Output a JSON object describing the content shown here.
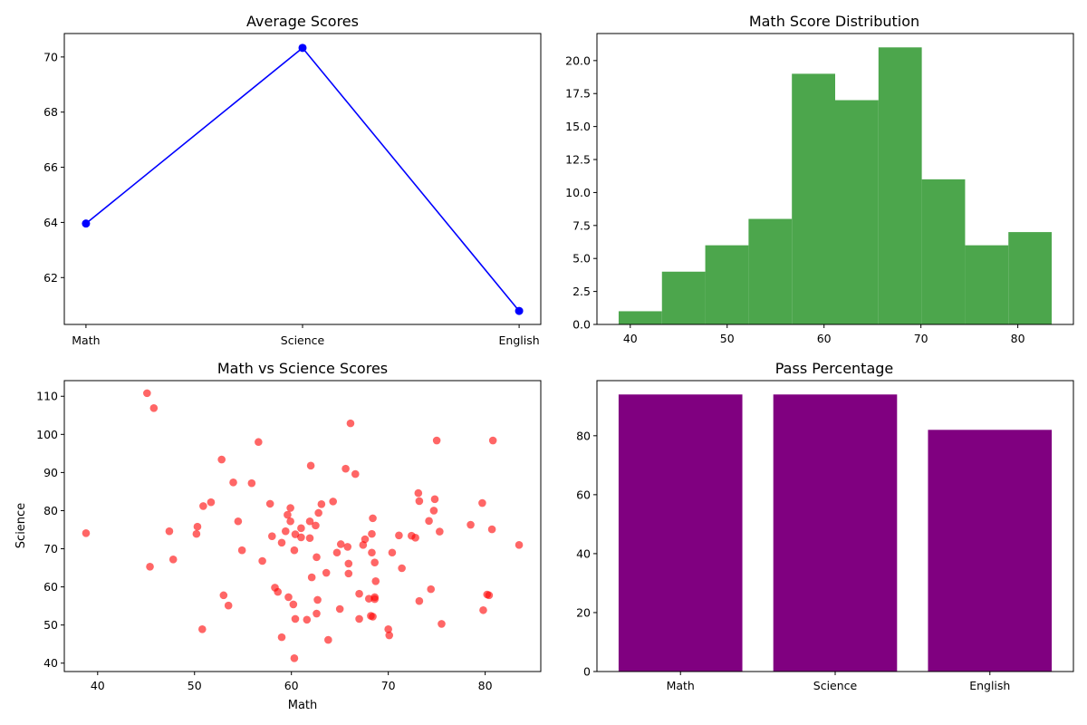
{
  "figure": {
    "background": "#ffffff"
  },
  "chart_data": [
    {
      "id": "avg",
      "type": "line",
      "title": "Average Scores",
      "xlabel": "",
      "ylabel": "",
      "categories": [
        "Math",
        "Science",
        "English"
      ],
      "series": [
        {
          "values": [
            63.96,
            70.33,
            60.79
          ]
        }
      ],
      "ylim": [
        60.3,
        70.85
      ],
      "yticks": [
        62,
        64,
        66,
        68,
        70
      ],
      "grid": false,
      "color": "#0000ff",
      "marker": "circle"
    },
    {
      "id": "hist",
      "type": "bar",
      "title": "Math Score Distribution",
      "xlabel": "",
      "ylabel": "",
      "bin_edges": [
        38.8,
        43.27,
        47.74,
        52.21,
        56.68,
        61.15,
        65.62,
        70.09,
        74.56,
        79.03,
        83.5
      ],
      "values": [
        1,
        4,
        6,
        8,
        19,
        17,
        21,
        11,
        6,
        7
      ],
      "xlim": [
        36.56,
        85.74
      ],
      "ylim": [
        0,
        22.05
      ],
      "xticks": [
        40,
        50,
        60,
        70,
        80
      ],
      "yticks": [
        0.0,
        2.5,
        5.0,
        7.5,
        10.0,
        12.5,
        15.0,
        17.5,
        20.0
      ],
      "grid": false,
      "color": "#4ca64c"
    },
    {
      "id": "scatter",
      "type": "scatter",
      "title": "Math vs Science Scores",
      "xlabel": "Math",
      "ylabel": "Science",
      "xlim": [
        36.56,
        85.74
      ],
      "ylim": [
        37.8,
        114.1
      ],
      "xticks": [
        40,
        50,
        60,
        70,
        80
      ],
      "yticks": [
        40,
        50,
        60,
        70,
        80,
        90,
        100,
        110
      ],
      "grid": false,
      "color": "#ff0000",
      "opacity": 0.6,
      "points": [
        [
          38.8,
          74.1
        ],
        [
          45.1,
          110.8
        ],
        [
          45.8,
          106.9
        ],
        [
          45.4,
          65.3
        ],
        [
          47.4,
          74.6
        ],
        [
          47.8,
          67.2
        ],
        [
          50.3,
          75.8
        ],
        [
          50.2,
          73.9
        ],
        [
          50.9,
          81.2
        ],
        [
          51.7,
          82.2
        ],
        [
          50.8,
          48.9
        ],
        [
          52.8,
          93.4
        ],
        [
          53.0,
          57.8
        ],
        [
          53.5,
          55.1
        ],
        [
          54.0,
          87.4
        ],
        [
          54.5,
          77.2
        ],
        [
          54.9,
          69.6
        ],
        [
          55.9,
          87.2
        ],
        [
          56.6,
          98.0
        ],
        [
          57.0,
          66.8
        ],
        [
          57.8,
          81.8
        ],
        [
          58.0,
          73.3
        ],
        [
          58.3,
          59.8
        ],
        [
          58.6,
          58.7
        ],
        [
          59.0,
          46.8
        ],
        [
          59.0,
          71.6
        ],
        [
          59.4,
          74.6
        ],
        [
          59.6,
          78.9
        ],
        [
          59.7,
          57.3
        ],
        [
          59.9,
          77.2
        ],
        [
          59.9,
          80.7
        ],
        [
          60.2,
          55.4
        ],
        [
          60.3,
          69.6
        ],
        [
          60.4,
          73.8
        ],
        [
          60.4,
          51.6
        ],
        [
          60.3,
          41.3
        ],
        [
          61.0,
          73.0
        ],
        [
          61.0,
          75.4
        ],
        [
          61.6,
          51.4
        ],
        [
          61.9,
          77.2
        ],
        [
          62.0,
          91.8
        ],
        [
          61.9,
          72.8
        ],
        [
          62.1,
          62.5
        ],
        [
          62.5,
          76.1
        ],
        [
          62.6,
          67.8
        ],
        [
          62.6,
          53.0
        ],
        [
          62.7,
          56.6
        ],
        [
          62.8,
          79.4
        ],
        [
          63.1,
          81.7
        ],
        [
          63.6,
          63.7
        ],
        [
          63.8,
          46.1
        ],
        [
          64.3,
          82.4
        ],
        [
          64.7,
          69.0
        ],
        [
          65.0,
          54.2
        ],
        [
          65.1,
          71.2
        ],
        [
          65.6,
          91.0
        ],
        [
          65.8,
          70.5
        ],
        [
          65.9,
          66.1
        ],
        [
          65.9,
          63.5
        ],
        [
          66.1,
          102.9
        ],
        [
          66.6,
          89.6
        ],
        [
          67.0,
          58.2
        ],
        [
          67.0,
          51.6
        ],
        [
          67.4,
          71.0
        ],
        [
          67.6,
          72.5
        ],
        [
          68.0,
          56.9
        ],
        [
          68.2,
          52.4
        ],
        [
          68.3,
          73.9
        ],
        [
          68.3,
          69.0
        ],
        [
          68.4,
          52.2
        ],
        [
          68.4,
          78.0
        ],
        [
          68.6,
          57.3
        ],
        [
          68.6,
          66.4
        ],
        [
          68.7,
          61.5
        ],
        [
          68.6,
          56.8
        ],
        [
          70.0,
          48.9
        ],
        [
          70.1,
          47.3
        ],
        [
          70.4,
          69.0
        ],
        [
          71.1,
          73.5
        ],
        [
          71.4,
          64.9
        ],
        [
          72.4,
          73.4
        ],
        [
          72.8,
          72.9
        ],
        [
          73.1,
          84.6
        ],
        [
          73.2,
          82.5
        ],
        [
          73.2,
          56.3
        ],
        [
          74.2,
          77.3
        ],
        [
          74.4,
          59.4
        ],
        [
          74.7,
          80.0
        ],
        [
          74.8,
          83.0
        ],
        [
          75.0,
          98.4
        ],
        [
          75.3,
          74.5
        ],
        [
          75.5,
          50.3
        ],
        [
          78.5,
          76.3
        ],
        [
          79.7,
          82.0
        ],
        [
          79.8,
          53.9
        ],
        [
          80.2,
          58.0
        ],
        [
          80.4,
          57.8
        ],
        [
          80.7,
          75.1
        ],
        [
          80.8,
          98.4
        ],
        [
          83.5,
          71.0
        ]
      ]
    },
    {
      "id": "pass",
      "type": "bar",
      "title": "Pass Percentage",
      "xlabel": "",
      "ylabel": "",
      "categories": [
        "Math",
        "Science",
        "English"
      ],
      "values": [
        94,
        94,
        82
      ],
      "ylim": [
        0,
        98.7
      ],
      "yticks": [
        0,
        20,
        40,
        60,
        80
      ],
      "grid": false,
      "color": "#800080"
    }
  ]
}
